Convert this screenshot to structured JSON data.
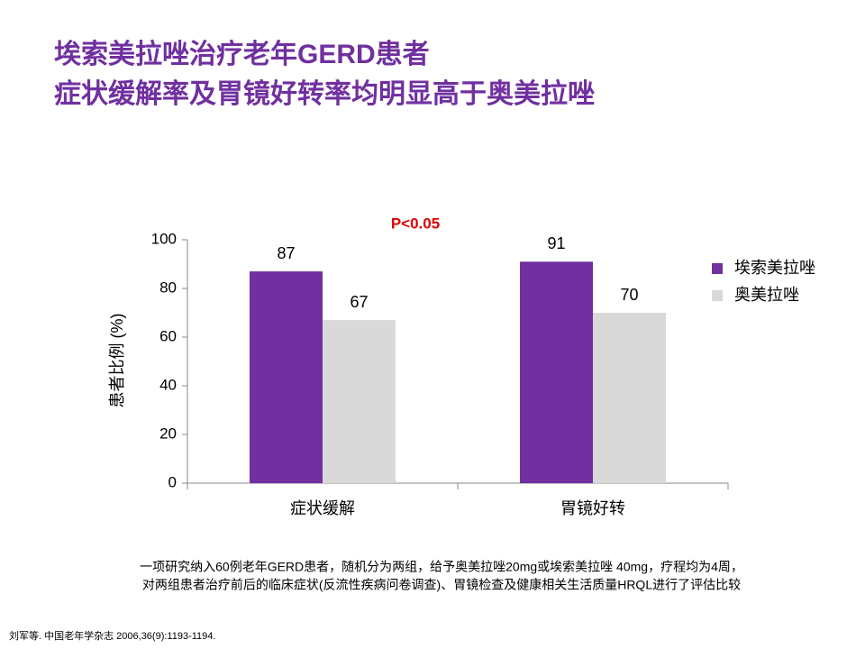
{
  "title": [
    "埃索美拉唑治疗老年GERD患者",
    "症状缓解率及胃镜好转率均明显高于奥美拉唑"
  ],
  "chart_data": {
    "type": "bar",
    "annotation": "P<0.05",
    "y_label": "患者比例 (%)",
    "categories": [
      "症状缓解",
      "胃镜好转"
    ],
    "series": [
      {
        "name": "埃索美拉唑",
        "color": "#7030a0",
        "values": [
          87,
          91
        ]
      },
      {
        "name": "奥美拉唑",
        "color": "#d9d9d9",
        "values": [
          67,
          70
        ]
      }
    ],
    "ylim": [
      0,
      100
    ],
    "yticks": [
      0,
      20,
      40,
      60,
      80,
      100
    ],
    "legend": "right"
  },
  "footnote": [
    "一项研究纳入60例老年GERD患者，随机分为两组，给予奥美拉唑20mg或埃索美拉唑 40mg，疗程均为4周，",
    "对两组患者治疗前后的临床症状(反流性疾病问卷调查)、胃镜检查及健康相关生活质量HRQL进行了评估比较"
  ],
  "reference": "刘军等. 中国老年学杂志 2006,36(9):1193-1194."
}
